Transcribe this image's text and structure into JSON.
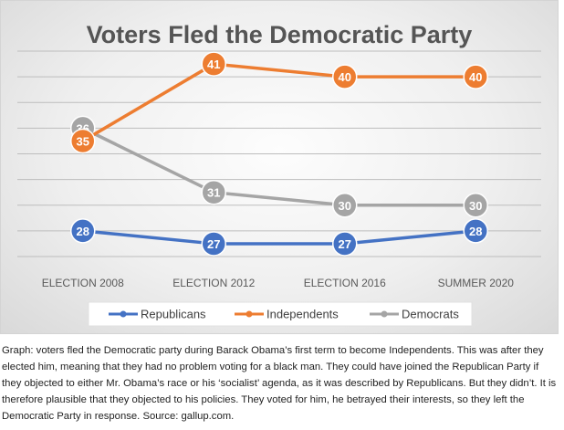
{
  "chart_data": {
    "type": "line",
    "title": "Voters Fled the Democratic Party",
    "categories": [
      "ELECTION 2008",
      "ELECTION 2012",
      "ELECTION 2016",
      "SUMMER 2020"
    ],
    "series": [
      {
        "name": "Republicans",
        "color": "#4472c4",
        "values": [
          28,
          27,
          27,
          28
        ]
      },
      {
        "name": "Independents",
        "color": "#ed7d31",
        "values": [
          35,
          41,
          40,
          40
        ]
      },
      {
        "name": "Democrats",
        "color": "#a5a5a5",
        "values": [
          36,
          31,
          30,
          30
        ]
      }
    ],
    "ylim": [
      26,
      42
    ],
    "grid": true,
    "legend_position": "bottom"
  },
  "caption": "Graph: voters fled the Democratic party during Barack Obama’s first term to become Independents. This was after they elected him, meaning that they had no problem voting for a black man. They could have joined the Republican Party if they objected to either Mr. Obama’s race or his ‘socialist’ agenda, as it was described by Republicans. But they didn’t. It is therefore plausible that they objected to his policies. They voted for him, he betrayed their interests, so they left the Democratic Party in response. Source: gallup.com."
}
